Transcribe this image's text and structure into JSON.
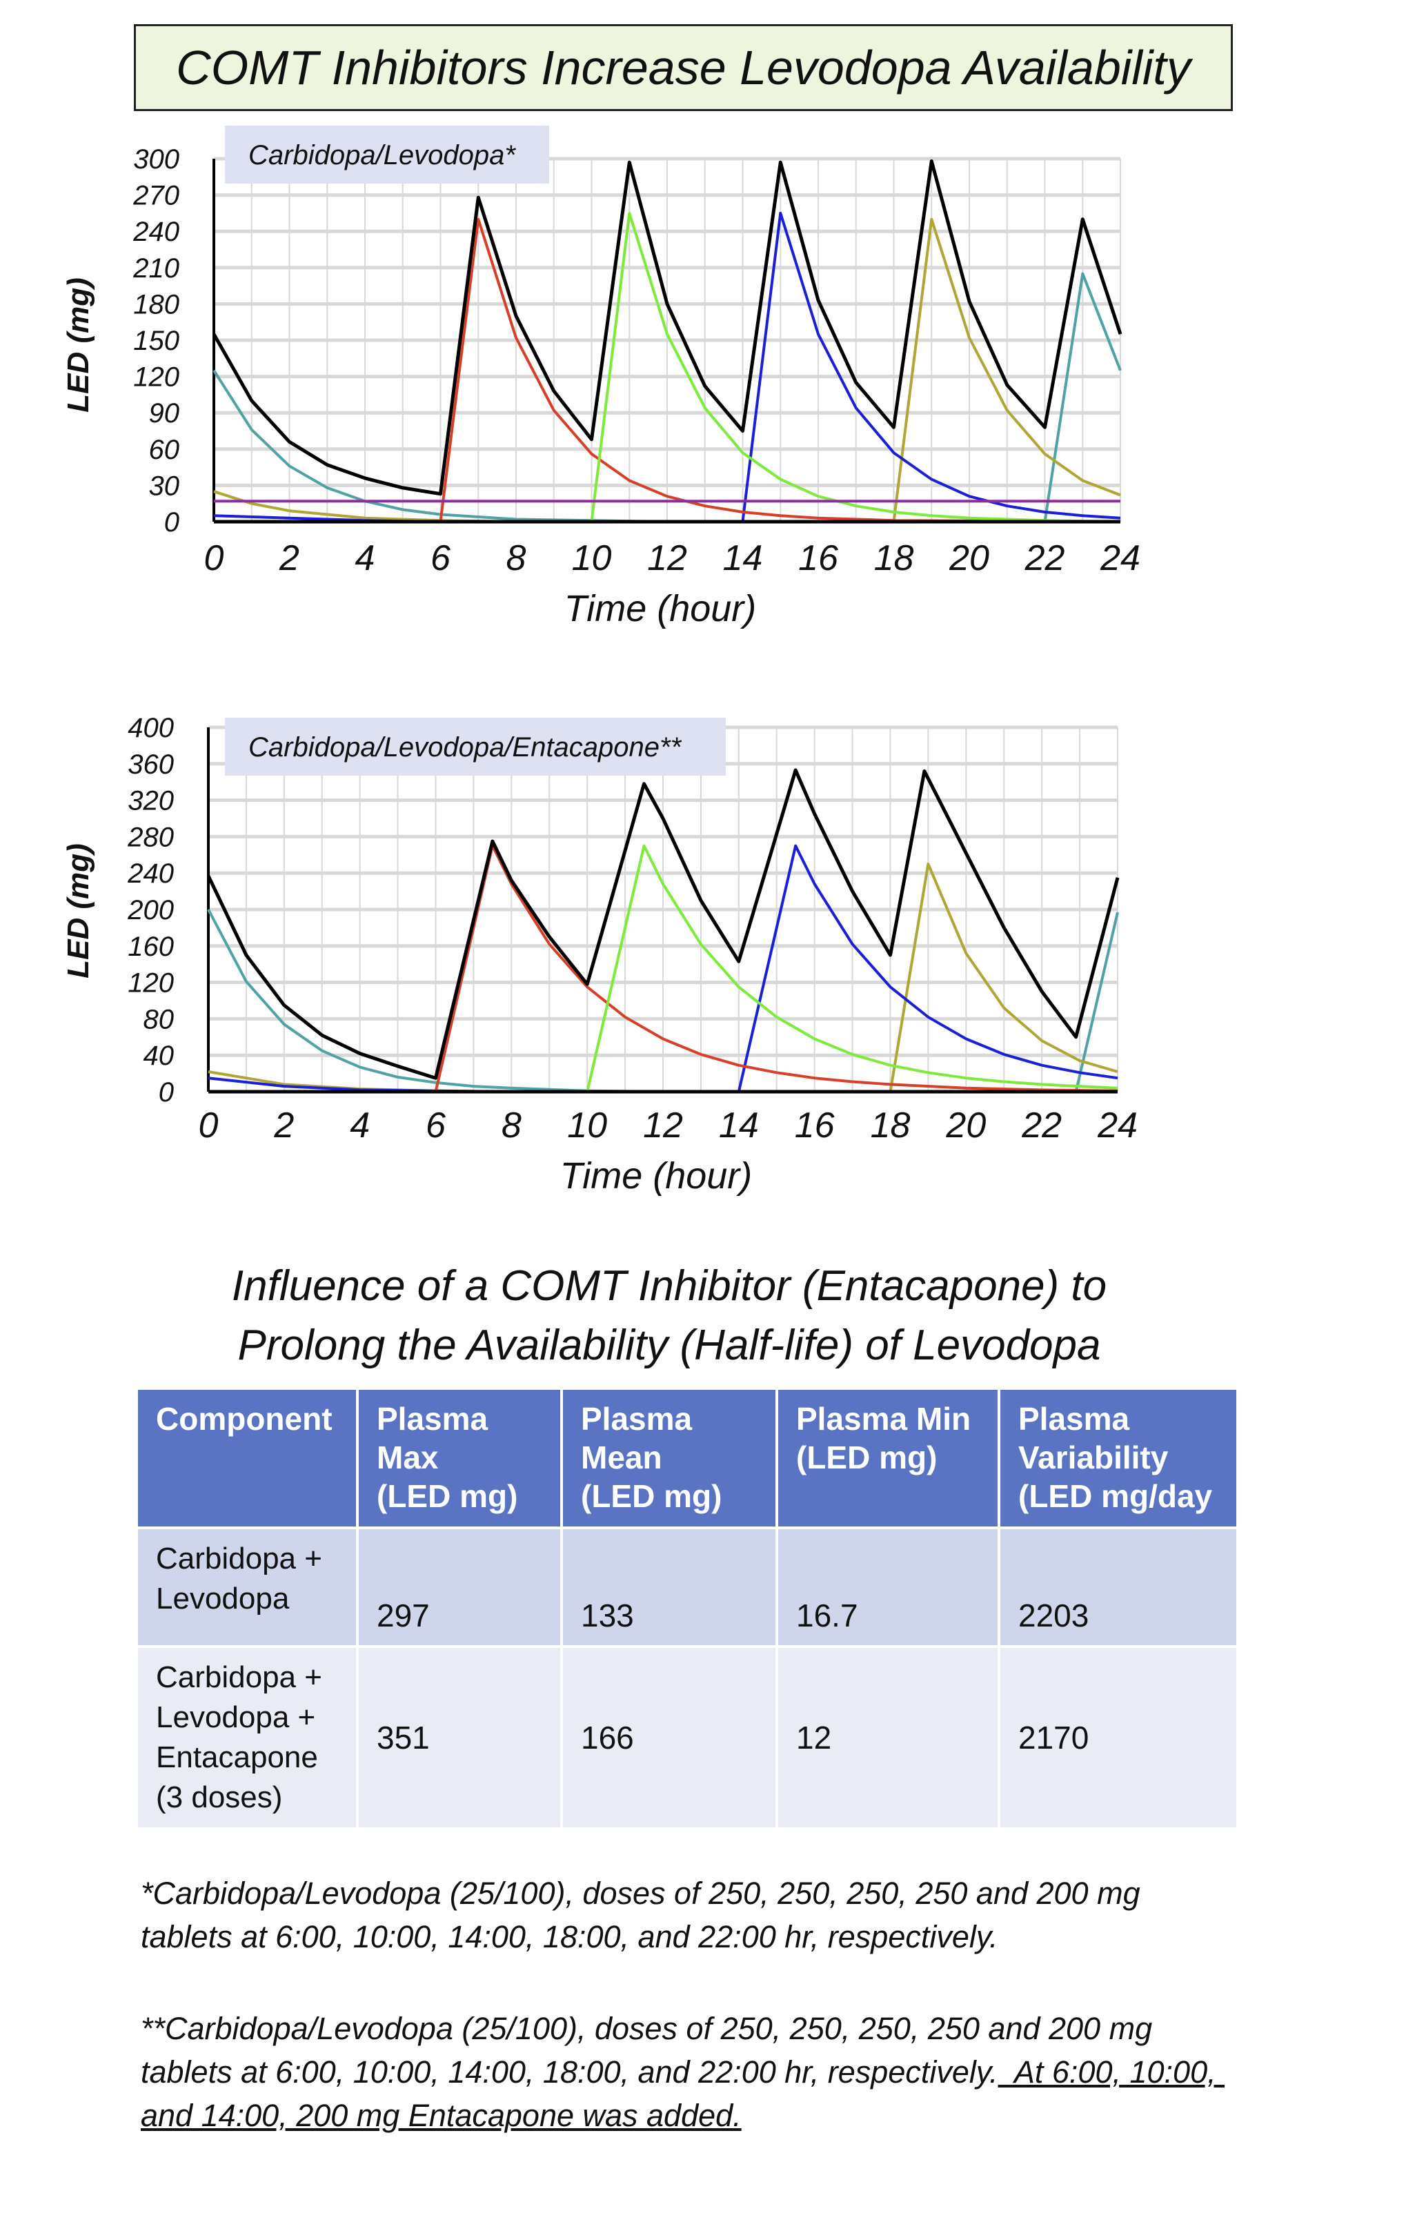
{
  "title": "COMT Inhibitors Increase Levodopa Availability",
  "chart_data": [
    {
      "type": "line",
      "label": "Carbidopa/Levodopa*",
      "xlabel": "Time (hour)",
      "ylabel": "LED (mg)",
      "xlim": [
        0,
        24
      ],
      "ylim": [
        0,
        300
      ],
      "xticks": [
        0,
        2,
        4,
        6,
        8,
        10,
        12,
        14,
        16,
        18,
        20,
        22,
        24
      ],
      "yticks": [
        0,
        30,
        60,
        90,
        120,
        150,
        180,
        210,
        240,
        270,
        300
      ],
      "grid": true,
      "series": [
        {
          "color": "#4fa3a5",
          "points": [
            [
              0,
              125
            ],
            [
              1,
              76
            ],
            [
              2,
              46
            ],
            [
              3,
              28
            ],
            [
              4,
              17
            ],
            [
              5,
              10
            ],
            [
              6,
              6
            ],
            [
              7,
              4
            ],
            [
              8,
              2
            ],
            [
              10,
              1
            ],
            [
              12,
              0
            ],
            [
              22,
              0
            ],
            [
              23,
              205
            ],
            [
              24,
              125
            ]
          ]
        },
        {
          "color": "#b0a633",
          "points": [
            [
              0,
              25
            ],
            [
              1,
              15
            ],
            [
              2,
              9
            ],
            [
              4,
              3
            ],
            [
              6,
              1
            ],
            [
              8,
              0
            ],
            [
              18,
              0
            ],
            [
              19,
              250
            ],
            [
              20,
              152
            ],
            [
              21,
              92
            ],
            [
              22,
              56
            ],
            [
              23,
              34
            ],
            [
              24,
              22
            ]
          ]
        },
        {
          "color": "#1b1fd8",
          "points": [
            [
              0,
              5
            ],
            [
              2,
              3
            ],
            [
              4,
              1
            ],
            [
              6,
              0
            ],
            [
              14,
              0
            ],
            [
              15,
              255
            ],
            [
              16,
              155
            ],
            [
              17,
              94
            ],
            [
              18,
              57
            ],
            [
              19,
              35
            ],
            [
              20,
              21
            ],
            [
              21,
              13
            ],
            [
              22,
              8
            ],
            [
              23,
              5
            ],
            [
              24,
              3
            ]
          ]
        },
        {
          "color": "#d6402a",
          "points": [
            [
              0,
              0
            ],
            [
              6,
              0
            ],
            [
              7,
              250
            ],
            [
              8,
              152
            ],
            [
              9,
              92
            ],
            [
              10,
              56
            ],
            [
              11,
              34
            ],
            [
              12,
              21
            ],
            [
              13,
              13
            ],
            [
              14,
              8
            ],
            [
              15,
              5
            ],
            [
              16,
              3
            ],
            [
              18,
              1
            ],
            [
              24,
              0
            ]
          ]
        },
        {
          "color": "#7eea3c",
          "points": [
            [
              0,
              0
            ],
            [
              10,
              0
            ],
            [
              11,
              255
            ],
            [
              12,
              155
            ],
            [
              13,
              94
            ],
            [
              14,
              57
            ],
            [
              15,
              35
            ],
            [
              16,
              21
            ],
            [
              17,
              13
            ],
            [
              18,
              8
            ],
            [
              19,
              5
            ],
            [
              20,
              3
            ],
            [
              22,
              1
            ],
            [
              24,
              0
            ]
          ]
        },
        {
          "color": "#8b2f9e",
          "points": [
            [
              0,
              17
            ],
            [
              24,
              17
            ]
          ]
        },
        {
          "color": "#000000",
          "points": [
            [
              0,
              155
            ],
            [
              1,
              100
            ],
            [
              2,
              66
            ],
            [
              3,
              47
            ],
            [
              4,
              36
            ],
            [
              5,
              28
            ],
            [
              6,
              23
            ],
            [
              7,
              268
            ],
            [
              8,
              170
            ],
            [
              9,
              108
            ],
            [
              10,
              68
            ],
            [
              11,
              297
            ],
            [
              12,
              180
            ],
            [
              13,
              112
            ],
            [
              14,
              75
            ],
            [
              15,
              297
            ],
            [
              16,
              183
            ],
            [
              17,
              115
            ],
            [
              18,
              78
            ],
            [
              19,
              298
            ],
            [
              20,
              182
            ],
            [
              21,
              113
            ],
            [
              22,
              78
            ],
            [
              23,
              250
            ],
            [
              24,
              155
            ]
          ]
        }
      ]
    },
    {
      "type": "line",
      "label": "Carbidopa/Levodopa/Entacapone**",
      "xlabel": "Time (hour)",
      "ylabel": "LED (mg)",
      "xlim": [
        0,
        24
      ],
      "ylim": [
        0,
        400
      ],
      "xticks": [
        0,
        2,
        4,
        6,
        8,
        10,
        12,
        14,
        16,
        18,
        20,
        22,
        24
      ],
      "yticks": [
        0,
        40,
        80,
        120,
        160,
        200,
        240,
        280,
        320,
        360,
        400
      ],
      "grid": true,
      "series": [
        {
          "color": "#4fa3a5",
          "points": [
            [
              0,
              200
            ],
            [
              1,
              121
            ],
            [
              2,
              74
            ],
            [
              3,
              45
            ],
            [
              4,
              27
            ],
            [
              5,
              16
            ],
            [
              6,
              10
            ],
            [
              7,
              6
            ],
            [
              8,
              4
            ],
            [
              10,
              1
            ],
            [
              12,
              0
            ],
            [
              22.9,
              0
            ],
            [
              24,
              197
            ]
          ]
        },
        {
          "color": "#b0a633",
          "points": [
            [
              0,
              22
            ],
            [
              2,
              8
            ],
            [
              4,
              3
            ],
            [
              6,
              1
            ],
            [
              8,
              0
            ],
            [
              18,
              0
            ],
            [
              19,
              250
            ],
            [
              20,
              152
            ],
            [
              21,
              92
            ],
            [
              22,
              56
            ],
            [
              23,
              34
            ],
            [
              24,
              22
            ]
          ]
        },
        {
          "color": "#1b1fd8",
          "points": [
            [
              0,
              15
            ],
            [
              2,
              6
            ],
            [
              4,
              2
            ],
            [
              6,
              1
            ],
            [
              8,
              0
            ],
            [
              14,
              0
            ],
            [
              15.5,
              270
            ],
            [
              16,
              228
            ],
            [
              17,
              162
            ],
            [
              18,
              115
            ],
            [
              19,
              82
            ],
            [
              20,
              58
            ],
            [
              21,
              41
            ],
            [
              22,
              29
            ],
            [
              23,
              21
            ],
            [
              24,
              15
            ]
          ]
        },
        {
          "color": "#d6402a",
          "points": [
            [
              0,
              0
            ],
            [
              6,
              0
            ],
            [
              7.5,
              270
            ],
            [
              8,
              228
            ],
            [
              9,
              162
            ],
            [
              10,
              115
            ],
            [
              11,
              82
            ],
            [
              12,
              58
            ],
            [
              13,
              41
            ],
            [
              14,
              29
            ],
            [
              15,
              21
            ],
            [
              16,
              15
            ],
            [
              17,
              11
            ],
            [
              18,
              8
            ],
            [
              20,
              4
            ],
            [
              22,
              2
            ],
            [
              24,
              1
            ]
          ]
        },
        {
          "color": "#7eea3c",
          "points": [
            [
              0,
              0
            ],
            [
              10,
              0
            ],
            [
              11.5,
              270
            ],
            [
              12,
              228
            ],
            [
              13,
              162
            ],
            [
              14,
              115
            ],
            [
              15,
              82
            ],
            [
              16,
              58
            ],
            [
              17,
              41
            ],
            [
              18,
              29
            ],
            [
              19,
              21
            ],
            [
              20,
              15
            ],
            [
              21,
              11
            ],
            [
              22,
              8
            ],
            [
              23,
              6
            ],
            [
              24,
              4
            ]
          ]
        },
        {
          "color": "#000000",
          "points": [
            [
              0,
              237
            ],
            [
              1,
              150
            ],
            [
              2,
              95
            ],
            [
              3,
              62
            ],
            [
              4,
              42
            ],
            [
              5,
              28
            ],
            [
              6,
              15
            ],
            [
              7.5,
              275
            ],
            [
              8,
              232
            ],
            [
              9,
              170
            ],
            [
              10,
              118
            ],
            [
              11.5,
              338
            ],
            [
              12,
              300
            ],
            [
              13,
              210
            ],
            [
              14,
              143
            ],
            [
              15.5,
              353
            ],
            [
              16,
              305
            ],
            [
              17,
              220
            ],
            [
              18,
              150
            ],
            [
              18.9,
              352
            ],
            [
              20,
              262
            ],
            [
              21,
              180
            ],
            [
              22,
              110
            ],
            [
              22.9,
              60
            ],
            [
              24,
              235
            ]
          ]
        }
      ]
    }
  ],
  "subtitle": [
    "Influence of a COMT Inhibitor (Entacapone) to",
    "Prolong the Availability (Half-life) of Levodopa"
  ],
  "table": {
    "headers": [
      [
        "Component"
      ],
      [
        "Plasma",
        "Max",
        "(LED mg)"
      ],
      [
        "Plasma",
        "Mean",
        "(LED mg)"
      ],
      [
        "Plasma Min",
        "(LED mg)"
      ],
      [
        "Plasma",
        "Variability",
        "(LED mg/day"
      ]
    ],
    "rows": [
      {
        "component": [
          "Carbidopa +",
          "Levodopa"
        ],
        "max": "297",
        "mean": "133",
        "min": "16.7",
        "variability": "2203"
      },
      {
        "component": [
          "Carbidopa +",
          "Levodopa +",
          "Entacapone",
          "(3 doses)"
        ],
        "max": "351",
        "mean": "166",
        "min": "12",
        "variability": "2170"
      }
    ]
  },
  "footnotes": {
    "note1": [
      "*Carbidopa/Levodopa (25/100), doses of 250, 250, 250, 250 and 200 mg",
      "tablets at 6:00, 10:00, 14:00, 18:00, and 22:00 hr, respectively."
    ],
    "note2_line1": "**Carbidopa/Levodopa (25/100), doses of 250, 250, 250, 250 and 200 mg",
    "note2_line2a": "tablets at 6:00, 10:00, 14:00, 18:00, and 22:00 hr, respectively.",
    "note2_line2b": "  At 6:00, 10:00, ",
    "note2_line3": "and 14:00, 200 mg Entacapone was added."
  }
}
